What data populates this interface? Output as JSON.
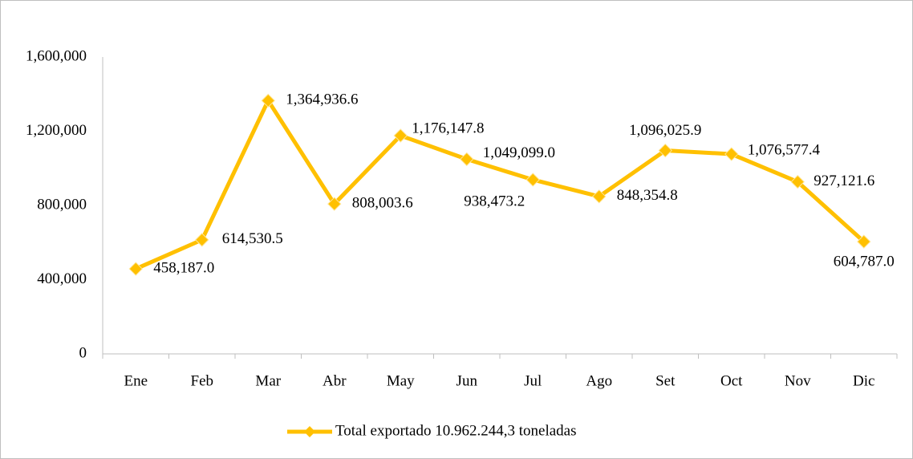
{
  "chart_data": {
    "type": "line",
    "categories": [
      "Ene",
      "Feb",
      "Mar",
      "Abr",
      "May",
      "Jun",
      "Jul",
      "Ago",
      "Set",
      "Oct",
      "Nov",
      "Dic"
    ],
    "series": [
      {
        "name": "Total exportado 10.962.244,3 toneladas",
        "color": "#FFC000",
        "values": [
          458187.0,
          614530.5,
          1364936.6,
          808003.6,
          1176147.8,
          1049099.0,
          938473.2,
          848354.8,
          1096025.9,
          1076577.4,
          927121.6,
          604787.0
        ],
        "value_labels": [
          "458,187.0",
          "614,530.5",
          "1,364,936.6",
          "808,003.6",
          "1,176,147.8",
          "1,049,099.0",
          "938,473.2",
          "848,354.8",
          "1,096,025.9",
          "1,076,577.4",
          "927,121.6",
          "604,787.0"
        ]
      }
    ],
    "ylim": [
      0,
      1600000
    ],
    "yticks": [
      0,
      {
        "value": 400000,
        "label": "400,000"
      },
      {
        "value": 800000,
        "label": "800,000"
      },
      {
        "value": 1200000,
        "label": "1,200,000"
      },
      {
        "value": 1600000,
        "label": "1,600,000"
      }
    ],
    "grid": false,
    "legend": "bottom"
  }
}
